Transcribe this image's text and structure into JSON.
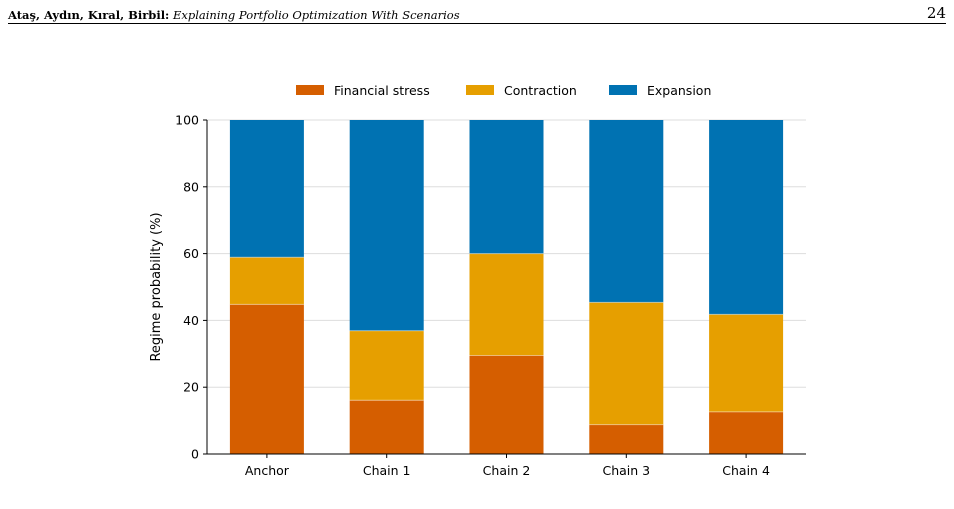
{
  "header": {
    "authors": "Ataş, Aydın, Kıral, Birbil:",
    "title": "Explaining Portfolio Optimization With Scenarios",
    "page_number": "24"
  },
  "chart_data": {
    "type": "bar",
    "stacked": true,
    "categories": [
      "Anchor",
      "Chain 1",
      "Chain 2",
      "Chain 3",
      "Chain 4"
    ],
    "series": [
      {
        "name": "Financial stress",
        "color": "#d55e00",
        "values": [
          44.8,
          16.1,
          29.5,
          8.8,
          12.6
        ]
      },
      {
        "name": "Contraction",
        "color": "#e69f00",
        "values": [
          14.1,
          20.8,
          30.5,
          36.6,
          29.2
        ]
      },
      {
        "name": "Expansion",
        "color": "#0072b2",
        "values": [
          41.1,
          63.1,
          40.0,
          54.6,
          58.2
        ]
      }
    ],
    "xlabel": "",
    "ylabel": "Regime probability (%)",
    "ylim": [
      0,
      100
    ],
    "yticks": [
      0,
      20,
      40,
      60,
      80,
      100
    ],
    "grid": "horizontal",
    "legend": "top"
  }
}
